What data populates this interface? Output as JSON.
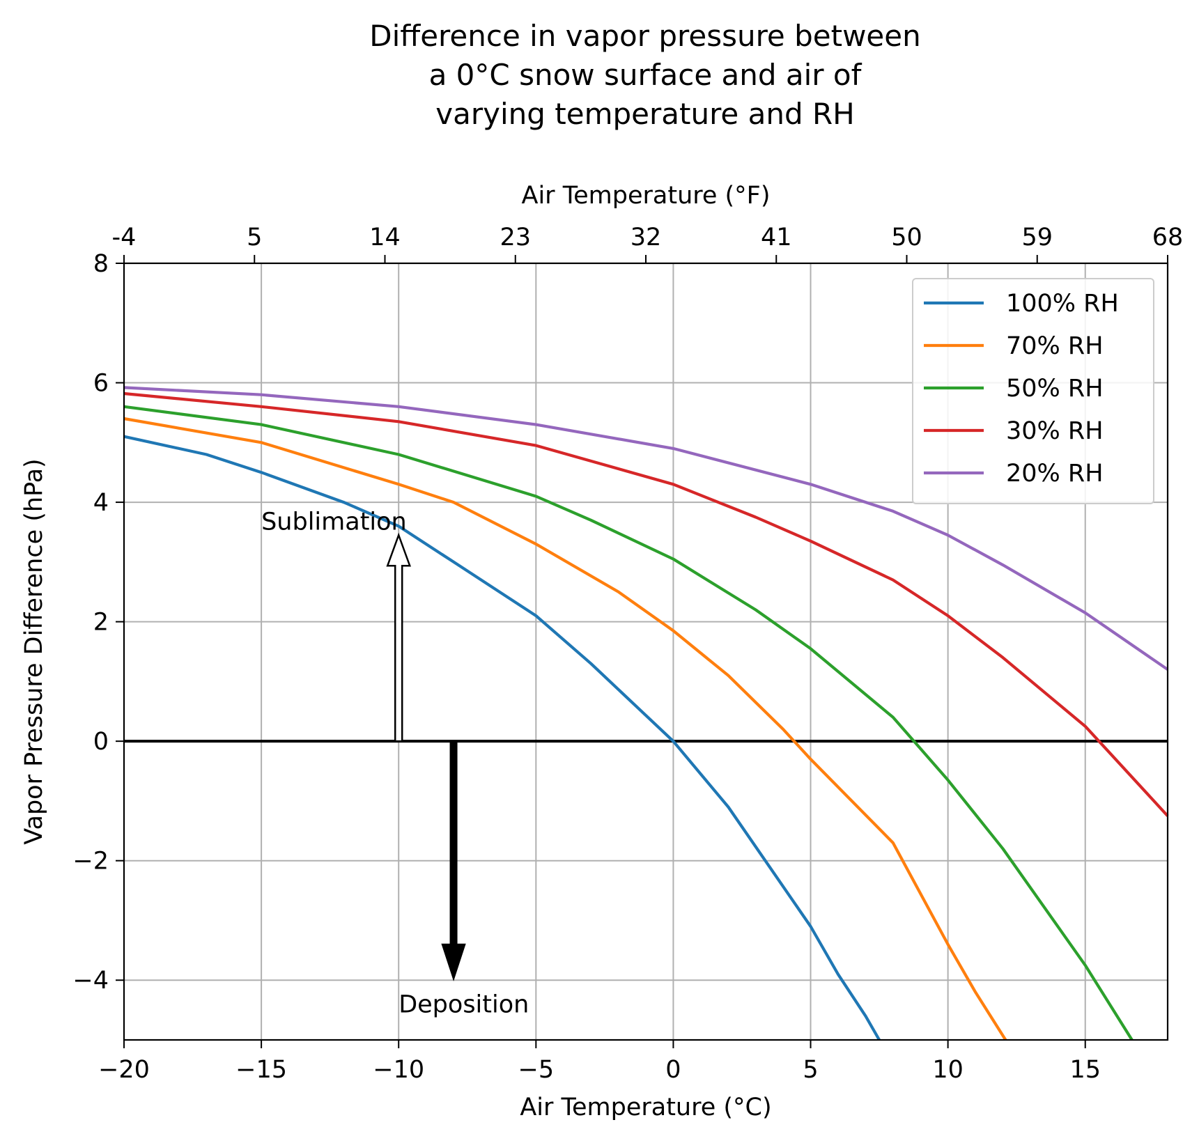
{
  "chart_data": {
    "type": "line",
    "title": [
      "Difference in vapor pressure between",
      "a 0°C snow surface and air of",
      "varying temperature and RH"
    ],
    "xlabel": "Air Temperature (°C)",
    "x2label": "Air Temperature (°F)",
    "ylabel": "Vapor Pressure Difference (hPa)",
    "xlim": [
      -20,
      18
    ],
    "ylim": [
      -5,
      8
    ],
    "x_ticks": [
      -20,
      -15,
      -10,
      -5,
      0,
      5,
      10,
      15
    ],
    "x_tick_labels": [
      "−20",
      "−15",
      "−10",
      "−5",
      "0",
      "5",
      "10",
      "15"
    ],
    "y_ticks": [
      -4,
      -2,
      0,
      2,
      4,
      6,
      8
    ],
    "y_tick_labels": [
      "−4",
      "−2",
      "0",
      "2",
      "4",
      "6",
      "8"
    ],
    "x2_ticks_c": [
      -20,
      -15,
      -10,
      -5,
      0,
      5,
      10,
      15,
      20
    ],
    "x2_tick_labels": [
      "-4",
      "5",
      "14",
      "23",
      "32",
      "41",
      "50",
      "59",
      "68"
    ],
    "grid": true,
    "zero_line": 0,
    "legend_position": "top-right",
    "series": [
      {
        "name": "100% RH",
        "label": "100% RH",
        "color": "#1f77b4",
        "x": [
          -20,
          -17,
          -15,
          -12,
          -10,
          -8,
          -5,
          -3,
          0,
          2,
          5,
          6,
          7,
          7.5
        ],
        "values": [
          5.1,
          4.8,
          4.5,
          4.0,
          3.6,
          3.0,
          2.1,
          1.3,
          0.0,
          -1.1,
          -3.1,
          -3.9,
          -4.6,
          -5.0
        ]
      },
      {
        "name": "70% RH",
        "label": "70% RH",
        "color": "#ff7f0e",
        "x": [
          -20,
          -15,
          -10,
          -8,
          -5,
          -2,
          0,
          2,
          4,
          5,
          8,
          10,
          11,
          12.1
        ],
        "values": [
          5.4,
          5.0,
          4.3,
          4.0,
          3.3,
          2.5,
          1.85,
          1.1,
          0.2,
          -0.3,
          -1.7,
          -3.4,
          -4.2,
          -5.0
        ]
      },
      {
        "name": "50% RH",
        "label": "50% RH",
        "color": "#2ca02c",
        "x": [
          -20,
          -15,
          -10,
          -5,
          -3,
          0,
          3,
          5,
          8,
          10,
          12,
          15,
          16.7
        ],
        "values": [
          5.6,
          5.3,
          4.8,
          4.1,
          3.7,
          3.05,
          2.2,
          1.55,
          0.4,
          -0.65,
          -1.8,
          -3.75,
          -5.0
        ]
      },
      {
        "name": "30% RH",
        "label": "30% RH",
        "color": "#d62728",
        "x": [
          -20,
          -15,
          -10,
          -5,
          0,
          3,
          5,
          8,
          10,
          12,
          15,
          18
        ],
        "values": [
          5.82,
          5.6,
          5.35,
          4.95,
          4.3,
          3.75,
          3.35,
          2.7,
          2.1,
          1.4,
          0.25,
          -1.25
        ]
      },
      {
        "name": "20% RH",
        "label": "20% RH",
        "color": "#9467bd",
        "x": [
          -20,
          -15,
          -10,
          -5,
          0,
          5,
          8,
          10,
          12,
          15,
          18
        ],
        "values": [
          5.92,
          5.8,
          5.6,
          5.3,
          4.9,
          4.3,
          3.85,
          3.45,
          2.95,
          2.15,
          1.2
        ]
      }
    ],
    "annotations": [
      {
        "text": "Sublimation",
        "arrow_x": -10,
        "arrow_from_y": 0,
        "arrow_to_y": 3.45,
        "style": "hollow-up"
      },
      {
        "text": "Deposition",
        "arrow_x": -8,
        "arrow_from_y": 0,
        "arrow_to_y": -4.0,
        "style": "solid-down"
      }
    ]
  }
}
